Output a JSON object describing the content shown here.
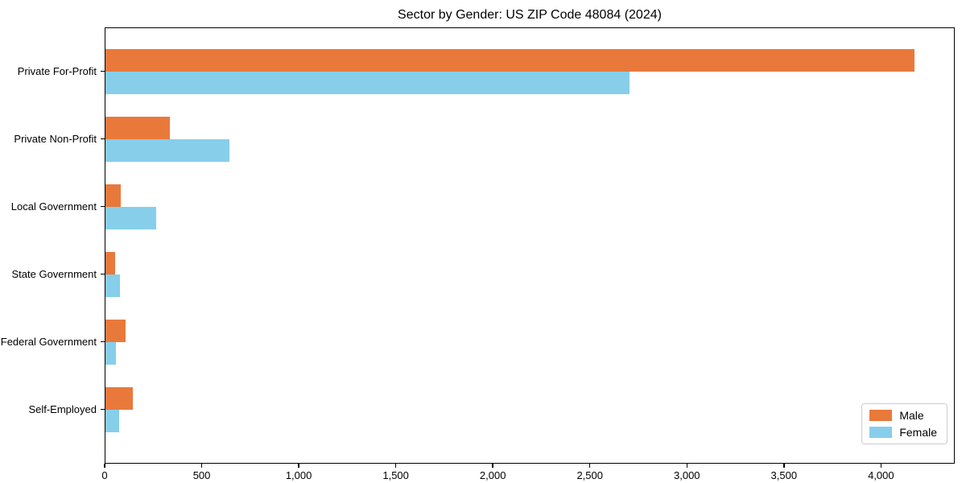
{
  "title": "Sector by Gender: US ZIP Code 48084 (2024)",
  "colors": {
    "male": "#e8793b",
    "female": "#87ceeb",
    "spine": "#000000",
    "legend_border": "#cccccc",
    "background": "#ffffff",
    "text": "#000000"
  },
  "chart_data": {
    "type": "bar",
    "orientation": "horizontal",
    "title": "Sector by Gender: US ZIP Code 48084 (2024)",
    "categories": [
      "Private For-Profit",
      "Private Non-Profit",
      "Local Government",
      "State Government",
      "Federal Government",
      "Self-Employed"
    ],
    "series": [
      {
        "name": "Male",
        "color": "#e8793b",
        "values": [
          4170,
          330,
          80,
          50,
          105,
          140
        ]
      },
      {
        "name": "Female",
        "color": "#87ceeb",
        "values": [
          2700,
          640,
          260,
          75,
          55,
          70
        ]
      }
    ],
    "xlabel": "",
    "ylabel": "",
    "xlim": [
      0,
      4380
    ],
    "xticks": [
      0,
      500,
      1000,
      1500,
      2000,
      2500,
      3000,
      3500,
      4000
    ],
    "xtick_labels": [
      "0",
      "500",
      "1,000",
      "1,500",
      "2,000",
      "2,500",
      "3,000",
      "3,500",
      "4,000"
    ],
    "grid": false,
    "legend": {
      "position": "lower right",
      "entries": [
        "Male",
        "Female"
      ]
    }
  }
}
